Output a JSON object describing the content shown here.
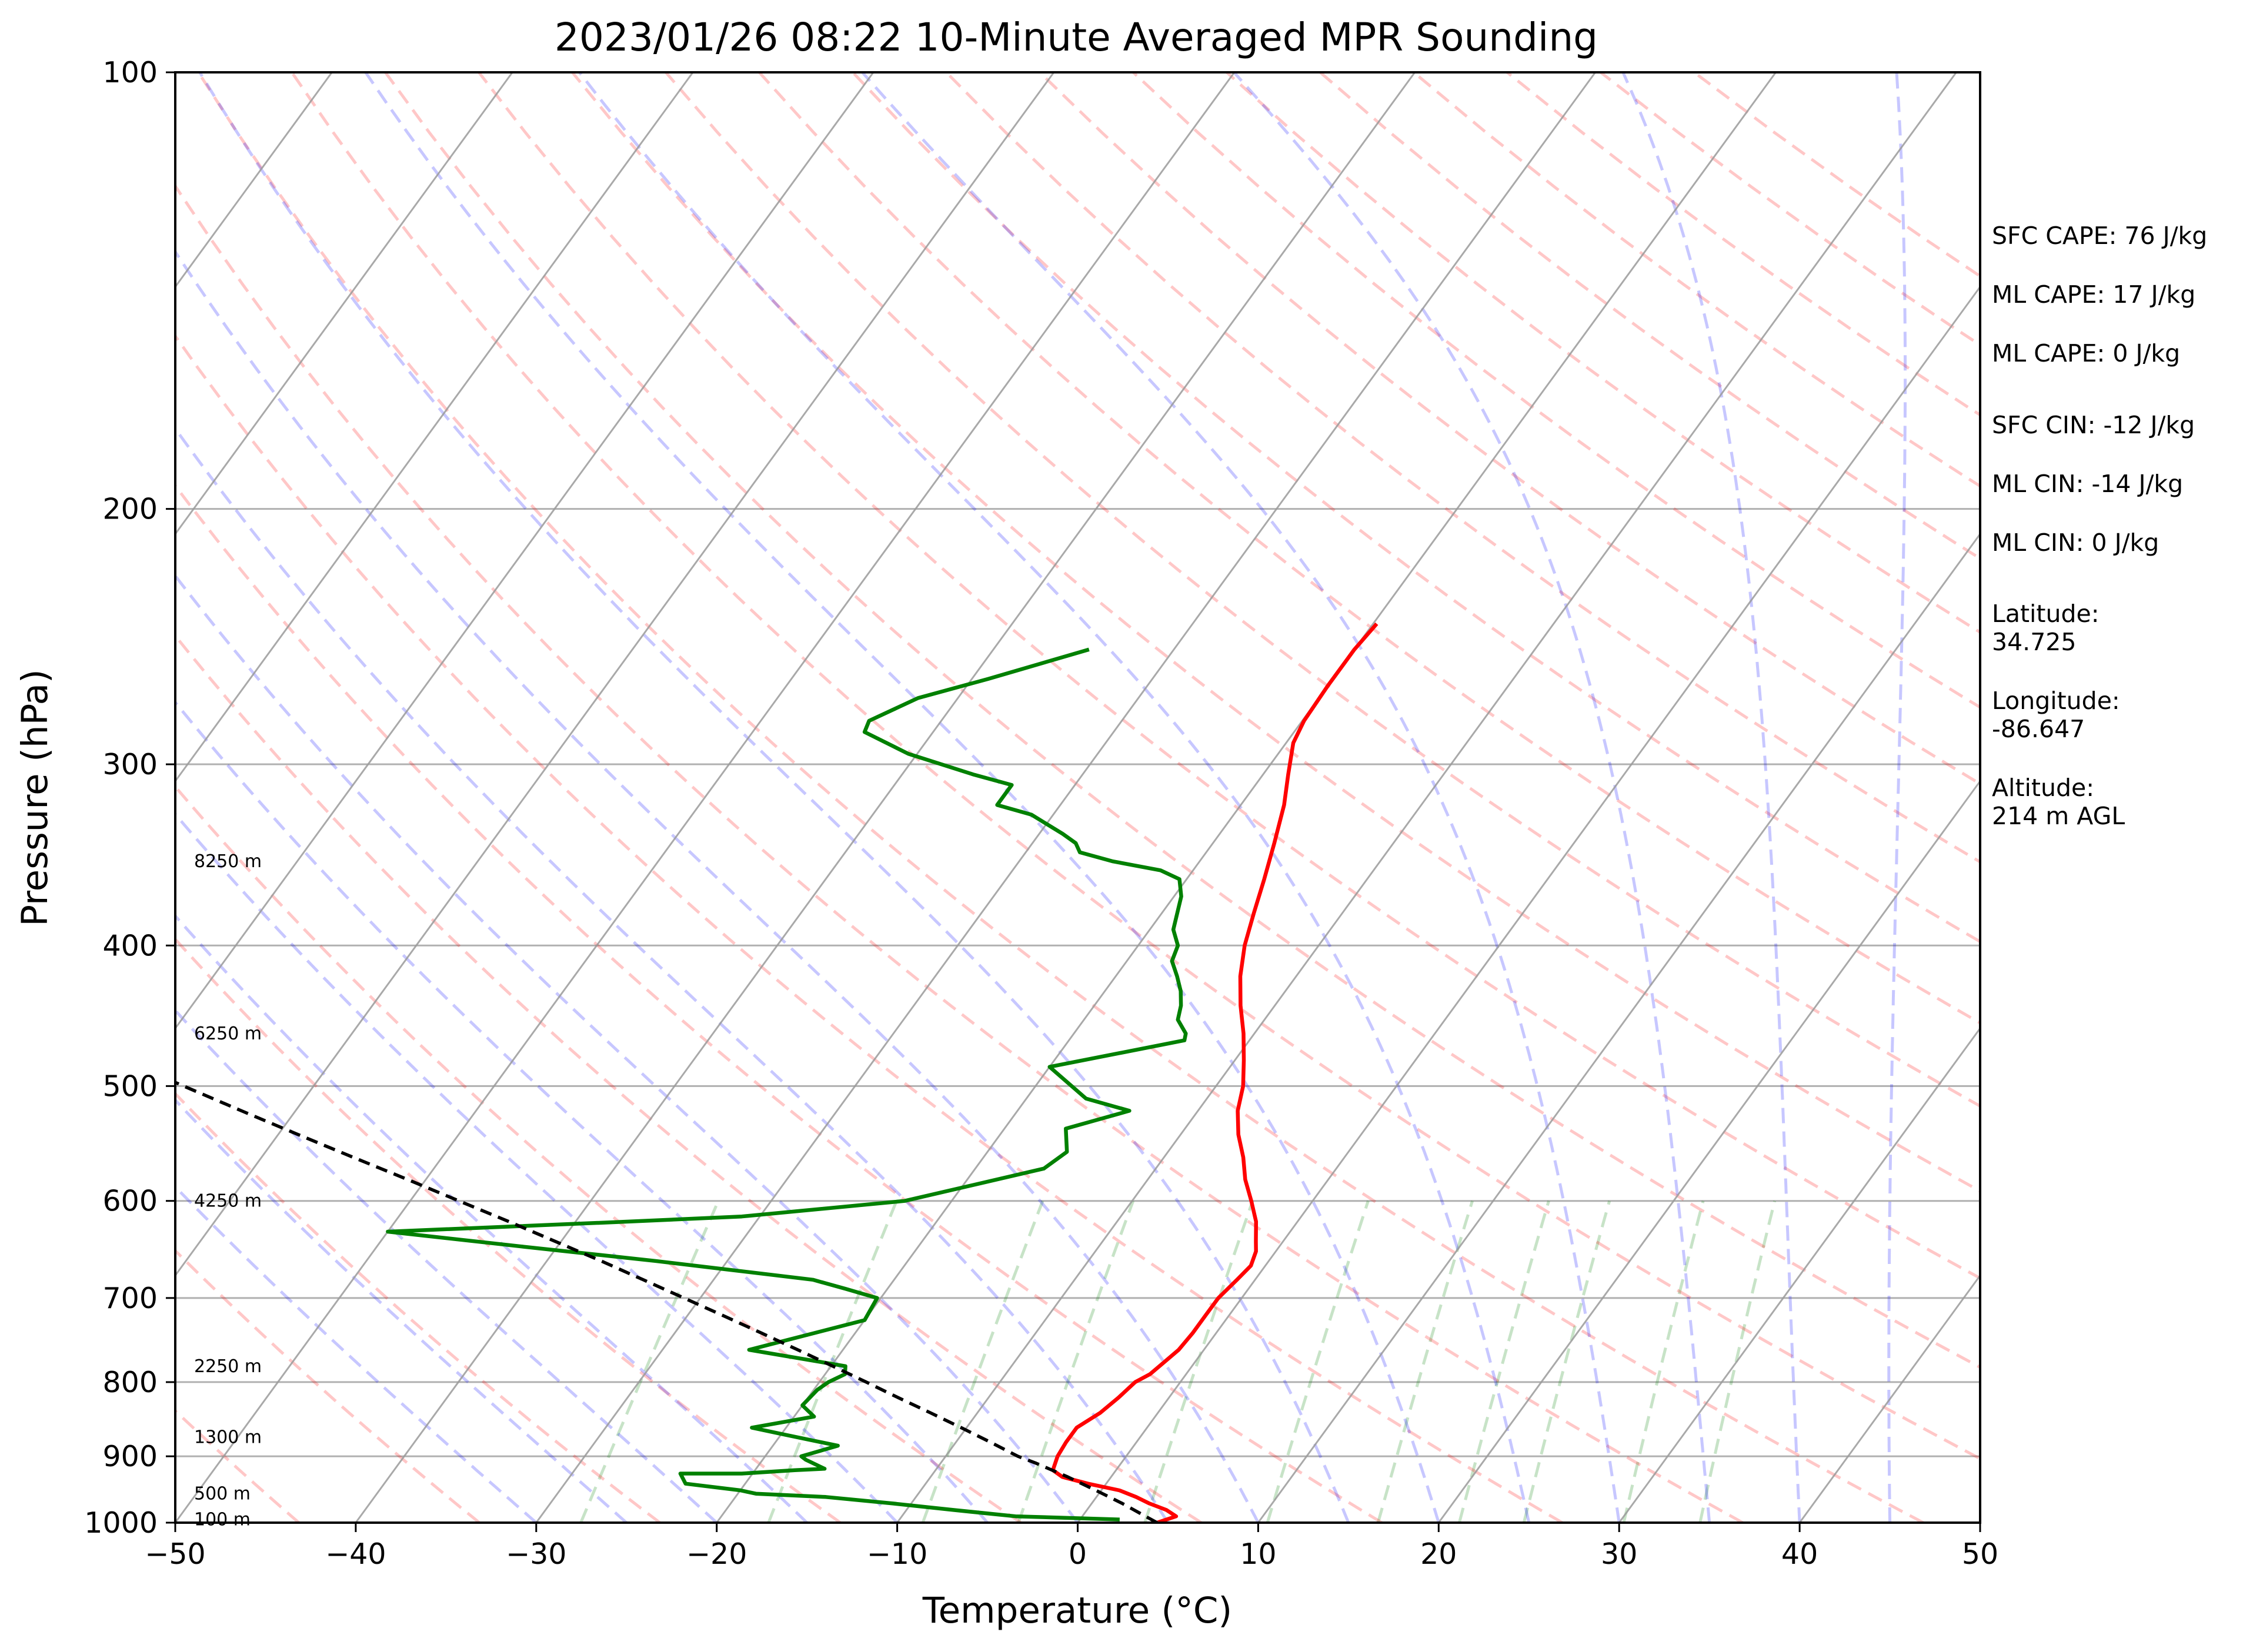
{
  "chart_data": {
    "type": "line",
    "subtype": "skew-t log-p sounding",
    "title": "2023/01/26 08:22 10-Minute Averaged MPR Sounding",
    "xlabel": "Temperature (°C)",
    "ylabel": "Pressure (hPa)",
    "xlim": [
      -50,
      50
    ],
    "ylim": [
      1000,
      100
    ],
    "y_scale": "log",
    "x_ticks": [
      "−50",
      "−40",
      "−30",
      "−20",
      "−10",
      "0",
      "10",
      "20",
      "30",
      "40",
      "50"
    ],
    "y_ticks": [
      "100",
      "200",
      "300",
      "400",
      "500",
      "600",
      "700",
      "800",
      "900",
      "1000"
    ],
    "grid": true,
    "height_labels": [
      {
        "p": 350,
        "text": "8250 m"
      },
      {
        "p": 460,
        "text": "6250 m"
      },
      {
        "p": 600,
        "text": "4250 m"
      },
      {
        "p": 780,
        "text": "2250 m"
      },
      {
        "p": 873,
        "text": "1300 m"
      },
      {
        "p": 955,
        "text": "500 m"
      },
      {
        "p": 995,
        "text": "100 m"
      }
    ],
    "series": [
      {
        "color": "#ff0000",
        "points": [
          [
            4.4,
            1000
          ],
          [
            5.2,
            990
          ],
          [
            4.4,
            980
          ],
          [
            3.2,
            970
          ],
          [
            2.2,
            960
          ],
          [
            1,
            950
          ],
          [
            -1,
            940
          ],
          [
            -2.7,
            930
          ],
          [
            -3.5,
            920
          ],
          [
            -3.8,
            900
          ],
          [
            -3.9,
            880
          ],
          [
            -3.9,
            860
          ],
          [
            -3.2,
            840
          ],
          [
            -2.8,
            820
          ],
          [
            -2.5,
            800
          ],
          [
            -2.0,
            790
          ],
          [
            -1.7,
            775
          ],
          [
            -1.4,
            760
          ],
          [
            -1.3,
            740
          ],
          [
            -1.3,
            720
          ],
          [
            -1.3,
            700
          ],
          [
            -1.0,
            680
          ],
          [
            -0.8,
            665
          ],
          [
            -1.1,
            650
          ],
          [
            -1.5,
            640
          ],
          [
            -2.3,
            620
          ],
          [
            -3.4,
            600
          ],
          [
            -4.6,
            580
          ],
          [
            -5.6,
            560
          ],
          [
            -6.8,
            540
          ],
          [
            -7.8,
            520
          ],
          [
            -8.5,
            500
          ],
          [
            -9.5,
            480
          ],
          [
            -10.6,
            460
          ],
          [
            -11.9,
            440
          ],
          [
            -13.1,
            420
          ],
          [
            -14.1,
            400
          ],
          [
            -14.9,
            380
          ],
          [
            -15.7,
            360
          ],
          [
            -16.6,
            340
          ],
          [
            -17.6,
            320
          ],
          [
            -18.6,
            305
          ],
          [
            -19.6,
            290
          ],
          [
            -19.9,
            280
          ],
          [
            -20,
            265
          ],
          [
            -20,
            250
          ],
          [
            -19.8,
            240
          ]
        ]
      },
      {
        "color": "#008000",
        "points": [
          [
            2.2,
            995
          ],
          [
            -3.7,
            990
          ],
          [
            -7.4,
            980
          ],
          [
            -11,
            970
          ],
          [
            -15,
            960
          ],
          [
            -19,
            955
          ],
          [
            -20,
            950
          ],
          [
            -23.3,
            940
          ],
          [
            -24,
            925
          ],
          [
            -20.6,
            925
          ],
          [
            -17.8,
            920
          ],
          [
            -16.2,
            918
          ],
          [
            -17.6,
            905
          ],
          [
            -18,
            900
          ],
          [
            -16.4,
            885
          ],
          [
            -19.7,
            870
          ],
          [
            -21.9,
            860
          ],
          [
            -18.9,
            845
          ],
          [
            -20,
            830
          ],
          [
            -19.8,
            810
          ],
          [
            -19.5,
            800
          ],
          [
            -18.9,
            790
          ],
          [
            -19.2,
            780
          ],
          [
            -25.2,
            760
          ],
          [
            -20,
            725
          ],
          [
            -20.2,
            700
          ],
          [
            -22.3,
            690
          ],
          [
            -24.5,
            680
          ],
          [
            -34,
            660
          ],
          [
            -42,
            645
          ],
          [
            -50,
            630
          ],
          [
            -37,
            620
          ],
          [
            -31,
            615
          ],
          [
            -22.6,
            600
          ],
          [
            -16.2,
            570
          ],
          [
            -15.6,
            555
          ],
          [
            -16.6,
            535
          ],
          [
            -13.8,
            520
          ],
          [
            -16.7,
            510
          ],
          [
            -20,
            485
          ],
          [
            -13.6,
            465
          ],
          [
            -13.8,
            460
          ],
          [
            -14.8,
            450
          ],
          [
            -15.2,
            440
          ],
          [
            -15.8,
            430
          ],
          [
            -16.6,
            420
          ],
          [
            -17.5,
            410
          ],
          [
            -17.8,
            400
          ],
          [
            -18.7,
            390
          ],
          [
            -19.6,
            370
          ],
          [
            -20.4,
            360
          ],
          [
            -21.8,
            355
          ],
          [
            -24.8,
            350
          ],
          [
            -27,
            345
          ],
          [
            -27.6,
            340
          ],
          [
            -28.7,
            335
          ],
          [
            -31.2,
            325
          ],
          [
            -33.5,
            320
          ],
          [
            -33.5,
            310
          ],
          [
            -36,
            305
          ],
          [
            -40.5,
            295
          ],
          [
            -43.8,
            285
          ],
          [
            -44,
            280
          ],
          [
            -42.2,
            270
          ],
          [
            -39.1,
            262
          ],
          [
            -34.7,
            250
          ]
        ]
      },
      {
        "color": "#000000",
        "dashed": true,
        "points": [
          [
            4.4,
            1000
          ],
          [
            3.5,
            990
          ],
          [
            1.7,
            970
          ],
          [
            -0.3,
            950
          ],
          [
            -2.4,
            930
          ],
          [
            -4.7,
            910
          ],
          [
            -6,
            900
          ],
          [
            -8.1,
            880
          ],
          [
            -10.3,
            860
          ],
          [
            -12.6,
            840
          ],
          [
            -15,
            820
          ],
          [
            -17.4,
            800
          ],
          [
            -19.9,
            780
          ],
          [
            -22.5,
            760
          ],
          [
            -25.2,
            740
          ],
          [
            -28,
            720
          ],
          [
            -30.9,
            700
          ],
          [
            -33.9,
            680
          ],
          [
            -37,
            660
          ],
          [
            -40.3,
            640
          ],
          [
            -43.7,
            620
          ],
          [
            -47.3,
            600
          ],
          [
            -51,
            580
          ],
          [
            -54.9,
            560
          ],
          [
            -58.9,
            540
          ],
          [
            -63,
            520
          ],
          [
            -67.2,
            500
          ],
          [
            -71.5,
            480
          ],
          [
            -75.8,
            460
          ],
          [
            -80.1,
            440
          ],
          [
            -84.4,
            420
          ],
          [
            -88.6,
            400
          ],
          [
            -92.7,
            380
          ],
          [
            -96.7,
            360
          ],
          [
            -100.6,
            340
          ],
          [
            -104.3,
            320
          ],
          [
            -107.8,
            300
          ],
          [
            -111,
            280
          ],
          [
            -112.2,
            272
          ],
          [
            -113.8,
            262
          ]
        ]
      }
    ]
  },
  "stats": [
    "SFC CAPE: 76 J/kg",
    "ML CAPE: 17 J/kg",
    "ML CAPE: 0 J/kg",
    "SFC CIN: -12 J/kg",
    "ML CIN: -14 J/kg",
    "ML CIN: 0 J/kg"
  ],
  "station": [
    [
      "Latitude:",
      "34.725"
    ],
    [
      "Longitude:",
      "-86.647"
    ],
    [
      "Altitude:",
      "214 m AGL"
    ]
  ]
}
